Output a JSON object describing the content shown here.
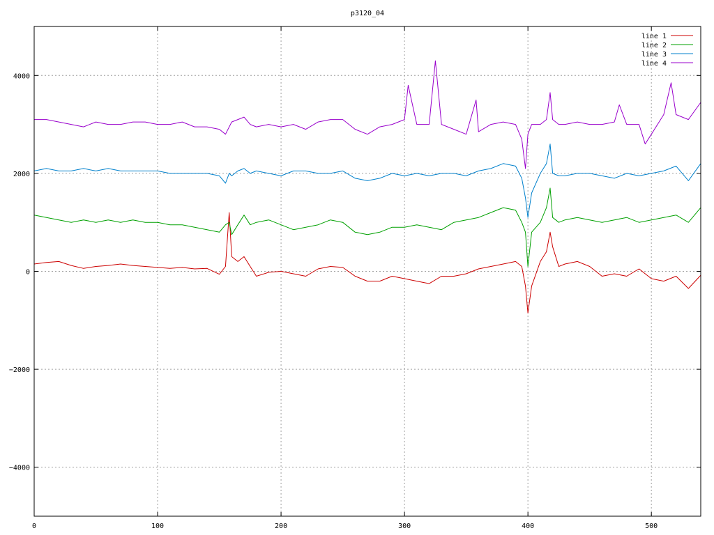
{
  "chart_data": {
    "type": "line",
    "title": "p3120_04",
    "xlabel": "",
    "ylabel": "",
    "xlim": [
      0,
      540
    ],
    "ylim": [
      -5000,
      5000
    ],
    "x_ticks": [
      0,
      100,
      200,
      300,
      400,
      500
    ],
    "y_ticks": [
      -4000,
      -2000,
      0,
      2000,
      4000
    ],
    "grid": true,
    "legend_position": "top-right",
    "series": [
      {
        "name": "line 1",
        "color": "#cc0000",
        "x": [
          0,
          10,
          20,
          30,
          40,
          50,
          60,
          70,
          80,
          90,
          100,
          110,
          120,
          130,
          140,
          150,
          155,
          158,
          160,
          165,
          170,
          175,
          180,
          190,
          200,
          210,
          220,
          230,
          240,
          250,
          260,
          270,
          280,
          290,
          300,
          310,
          320,
          330,
          340,
          350,
          360,
          370,
          380,
          390,
          395,
          398,
          400,
          403,
          410,
          415,
          418,
          420,
          425,
          430,
          440,
          450,
          460,
          470,
          480,
          490,
          500,
          510,
          520,
          530,
          540
        ],
        "values": [
          150,
          180,
          200,
          120,
          60,
          100,
          120,
          150,
          120,
          100,
          80,
          60,
          80,
          50,
          60,
          -60,
          100,
          1200,
          300,
          200,
          300,
          100,
          -100,
          -20,
          0,
          -50,
          -100,
          50,
          100,
          80,
          -100,
          -200,
          -200,
          -100,
          -150,
          -200,
          -250,
          -100,
          -100,
          -50,
          50,
          100,
          150,
          200,
          100,
          -300,
          -850,
          -300,
          200,
          400,
          800,
          500,
          100,
          150,
          200,
          100,
          -100,
          -50,
          -100,
          50,
          -150,
          -200,
          -100,
          -350,
          -80
        ]
      },
      {
        "name": "line 2",
        "color": "#00a000",
        "x": [
          0,
          10,
          20,
          30,
          40,
          50,
          60,
          70,
          80,
          90,
          100,
          110,
          120,
          130,
          140,
          150,
          155,
          158,
          160,
          165,
          170,
          175,
          180,
          190,
          200,
          210,
          220,
          230,
          240,
          250,
          260,
          270,
          280,
          290,
          300,
          310,
          320,
          330,
          340,
          350,
          360,
          370,
          380,
          390,
          395,
          398,
          400,
          403,
          410,
          415,
          418,
          420,
          425,
          430,
          440,
          450,
          460,
          470,
          480,
          490,
          500,
          510,
          520,
          530,
          540
        ],
        "values": [
          1150,
          1100,
          1050,
          1000,
          1050,
          1000,
          1050,
          1000,
          1050,
          1000,
          1000,
          950,
          950,
          900,
          850,
          800,
          950,
          1000,
          750,
          950,
          1150,
          950,
          1000,
          1050,
          950,
          850,
          900,
          950,
          1050,
          1000,
          800,
          750,
          800,
          900,
          900,
          950,
          900,
          850,
          1000,
          1050,
          1100,
          1200,
          1300,
          1250,
          1000,
          800,
          100,
          800,
          1000,
          1300,
          1700,
          1100,
          1000,
          1050,
          1100,
          1050,
          1000,
          1050,
          1100,
          1000,
          1050,
          1100,
          1150,
          1000,
          1300
        ]
      },
      {
        "name": "line 3",
        "color": "#0080cc",
        "x": [
          0,
          10,
          20,
          30,
          40,
          50,
          60,
          70,
          80,
          90,
          100,
          110,
          120,
          130,
          140,
          150,
          155,
          158,
          160,
          165,
          170,
          175,
          180,
          190,
          200,
          210,
          220,
          230,
          240,
          250,
          260,
          270,
          280,
          290,
          300,
          310,
          320,
          330,
          340,
          350,
          360,
          370,
          380,
          390,
          395,
          398,
          400,
          403,
          410,
          415,
          418,
          420,
          425,
          430,
          440,
          450,
          460,
          470,
          480,
          490,
          500,
          510,
          520,
          530,
          540
        ],
        "values": [
          2050,
          2100,
          2050,
          2050,
          2100,
          2050,
          2100,
          2050,
          2050,
          2050,
          2050,
          2000,
          2000,
          2000,
          2000,
          1950,
          1800,
          2000,
          1950,
          2050,
          2100,
          2000,
          2050,
          2000,
          1950,
          2050,
          2050,
          2000,
          2000,
          2050,
          1900,
          1850,
          1900,
          2000,
          1950,
          2000,
          1950,
          2000,
          2000,
          1950,
          2050,
          2100,
          2200,
          2150,
          1900,
          1500,
          1100,
          1600,
          2000,
          2200,
          2600,
          2000,
          1950,
          1950,
          2000,
          2000,
          1950,
          1900,
          2000,
          1950,
          2000,
          2050,
          2150,
          1850,
          2200
        ]
      },
      {
        "name": "line 4",
        "color": "#9900cc",
        "x": [
          0,
          10,
          20,
          30,
          40,
          50,
          60,
          70,
          80,
          90,
          100,
          110,
          120,
          130,
          140,
          150,
          155,
          160,
          165,
          170,
          175,
          180,
          190,
          200,
          210,
          220,
          230,
          240,
          250,
          260,
          270,
          280,
          290,
          300,
          303,
          310,
          320,
          325,
          330,
          340,
          350,
          358,
          360,
          370,
          380,
          390,
          395,
          398,
          400,
          403,
          410,
          415,
          418,
          420,
          425,
          430,
          440,
          450,
          460,
          470,
          474,
          480,
          490,
          495,
          500,
          510,
          516,
          520,
          530,
          540
        ],
        "values": [
          3100,
          3100,
          3050,
          3000,
          2950,
          3050,
          3000,
          3000,
          3050,
          3050,
          3000,
          3000,
          3050,
          2950,
          2950,
          2900,
          2800,
          3050,
          3100,
          3150,
          3000,
          2950,
          3000,
          2950,
          3000,
          2900,
          3050,
          3100,
          3100,
          2900,
          2800,
          2950,
          3000,
          3100,
          3800,
          3000,
          3000,
          4300,
          3000,
          2900,
          2800,
          3500,
          2850,
          3000,
          3050,
          3000,
          2700,
          2100,
          2800,
          3000,
          3000,
          3100,
          3650,
          3100,
          3000,
          3000,
          3050,
          3000,
          3000,
          3050,
          3400,
          3000,
          3000,
          2600,
          2800,
          3200,
          3850,
          3200,
          3100,
          3450
        ]
      }
    ]
  }
}
